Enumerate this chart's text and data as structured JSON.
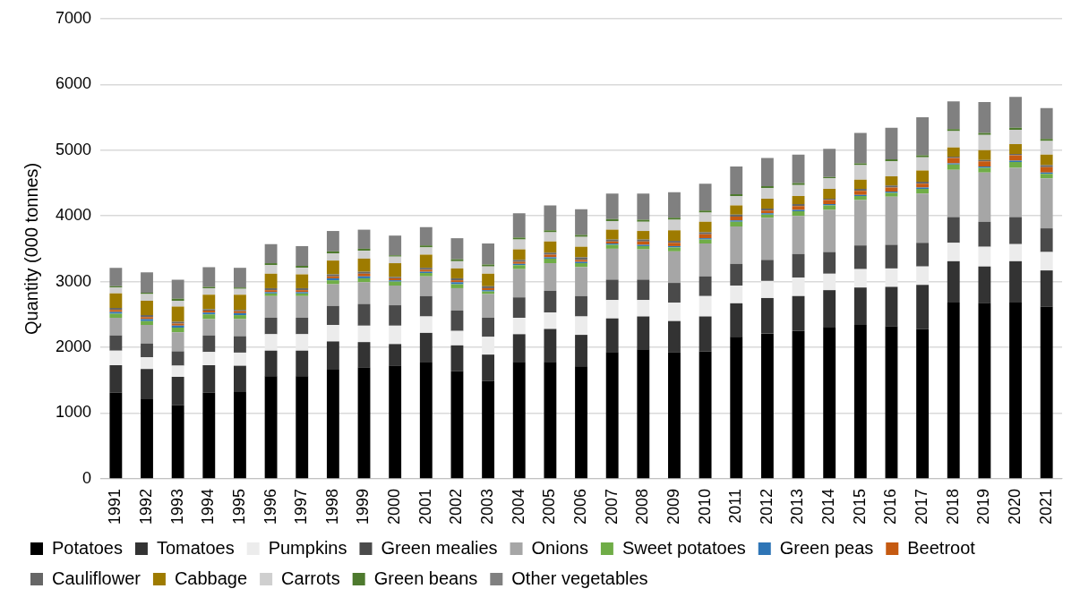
{
  "chart_data": {
    "type": "bar",
    "stacked": true,
    "ylabel": "Quantity (000 tonnes)",
    "categories": [
      "1991",
      "1992",
      "1993",
      "1994",
      "1995",
      "1996",
      "1997",
      "1998",
      "1999",
      "2000",
      "2001",
      "2002",
      "2003",
      "2004",
      "2005",
      "2006",
      "2007",
      "2008",
      "2009",
      "2010",
      "2011",
      "2012",
      "2013",
      "2014",
      "2015",
      "2016",
      "2017",
      "2018",
      "2019",
      "2020",
      "2021"
    ],
    "ylim": [
      0,
      7000
    ],
    "yticks": [
      0,
      1000,
      2000,
      3000,
      4000,
      5000,
      6000,
      7000
    ],
    "grid": "y",
    "legend": "bottom",
    "series": [
      {
        "name": "Potatoes",
        "color": "#000000",
        "values": [
          1310,
          1210,
          1120,
          1310,
          1320,
          1560,
          1560,
          1660,
          1690,
          1720,
          1780,
          1640,
          1490,
          1780,
          1780,
          1710,
          1930,
          1970,
          1920,
          1940,
          2160,
          2210,
          2250,
          2310,
          2340,
          2320,
          2280,
          2680,
          2670,
          2680,
          2620
        ]
      },
      {
        "name": "Tomatoes",
        "color": "#333333",
        "values": [
          420,
          460,
          430,
          420,
          400,
          390,
          390,
          430,
          390,
          330,
          440,
          390,
          400,
          420,
          500,
          480,
          510,
          500,
          480,
          530,
          510,
          540,
          530,
          560,
          570,
          600,
          670,
          630,
          560,
          630,
          550
        ]
      },
      {
        "name": "Pumpkins",
        "color": "#ececec",
        "values": [
          220,
          180,
          170,
          200,
          200,
          250,
          250,
          250,
          250,
          280,
          250,
          220,
          270,
          250,
          250,
          280,
          280,
          250,
          280,
          310,
          270,
          260,
          280,
          250,
          280,
          280,
          280,
          280,
          300,
          260,
          280
        ]
      },
      {
        "name": "Green mealies",
        "color": "#4a4a4a",
        "values": [
          230,
          210,
          220,
          250,
          250,
          250,
          250,
          290,
          330,
          310,
          310,
          310,
          290,
          310,
          330,
          310,
          310,
          310,
          300,
          300,
          330,
          320,
          360,
          330,
          360,
          360,
          360,
          390,
          380,
          410,
          360
        ]
      },
      {
        "name": "Onions",
        "color": "#a6a6a6",
        "values": [
          270,
          280,
          290,
          250,
          260,
          330,
          330,
          330,
          330,
          300,
          300,
          340,
          360,
          430,
          420,
          440,
          470,
          460,
          480,
          500,
          570,
          640,
          580,
          640,
          690,
          730,
          750,
          720,
          750,
          750,
          760
        ]
      },
      {
        "name": "Sweet potatoes",
        "color": "#70ad47",
        "values": [
          60,
          60,
          70,
          70,
          60,
          40,
          40,
          60,
          60,
          60,
          50,
          60,
          40,
          60,
          70,
          60,
          60,
          50,
          60,
          60,
          70,
          50,
          70,
          70,
          60,
          60,
          70,
          80,
          70,
          90,
          70
        ]
      },
      {
        "name": "Green peas",
        "color": "#2e75b6",
        "values": [
          30,
          30,
          30,
          30,
          30,
          20,
          20,
          30,
          30,
          20,
          20,
          30,
          20,
          20,
          20,
          20,
          20,
          20,
          20,
          20,
          20,
          20,
          20,
          20,
          20,
          20,
          20,
          20,
          20,
          20,
          20
        ]
      },
      {
        "name": "Beetroot",
        "color": "#c55a11",
        "values": [
          30,
          30,
          30,
          30,
          30,
          30,
          30,
          30,
          40,
          30,
          30,
          30,
          30,
          30,
          40,
          30,
          30,
          50,
          50,
          60,
          60,
          40,
          60,
          60,
          60,
          60,
          60,
          80,
          80,
          80,
          80
        ]
      },
      {
        "name": "Cauliflower",
        "color": "#666666",
        "values": [
          30,
          30,
          30,
          20,
          20,
          30,
          30,
          30,
          30,
          20,
          30,
          30,
          30,
          30,
          30,
          40,
          30,
          30,
          30,
          30,
          30,
          30,
          30,
          20,
          30,
          30,
          30,
          20,
          20,
          20,
          30
        ]
      },
      {
        "name": "Cabbage",
        "color": "#9e7b00",
        "values": [
          220,
          220,
          230,
          220,
          230,
          220,
          210,
          210,
          200,
          210,
          200,
          150,
          190,
          160,
          170,
          160,
          150,
          130,
          160,
          160,
          140,
          150,
          120,
          150,
          140,
          140,
          170,
          140,
          150,
          150,
          160
        ]
      },
      {
        "name": "Carrots",
        "color": "#cfcfcf",
        "values": [
          90,
          100,
          90,
          100,
          90,
          130,
          100,
          110,
          120,
          100,
          110,
          110,
          110,
          150,
          140,
          150,
          130,
          140,
          160,
          140,
          140,
          160,
          170,
          160,
          220,
          230,
          200,
          250,
          230,
          220,
          210
        ]
      },
      {
        "name": "Green beans",
        "color": "#4e7a2e",
        "values": [
          20,
          20,
          30,
          20,
          20,
          30,
          30,
          30,
          30,
          20,
          30,
          30,
          30,
          30,
          30,
          30,
          30,
          30,
          30,
          30,
          30,
          30,
          30,
          20,
          30,
          30,
          30,
          30,
          30,
          30,
          30
        ]
      },
      {
        "name": "Other vegetables",
        "color": "#808080",
        "values": [
          280,
          310,
          290,
          300,
          300,
          290,
          300,
          310,
          290,
          300,
          280,
          320,
          320,
          370,
          380,
          390,
          390,
          400,
          390,
          410,
          420,
          430,
          430,
          430,
          460,
          480,
          580,
          420,
          470,
          470,
          470
        ]
      }
    ]
  }
}
